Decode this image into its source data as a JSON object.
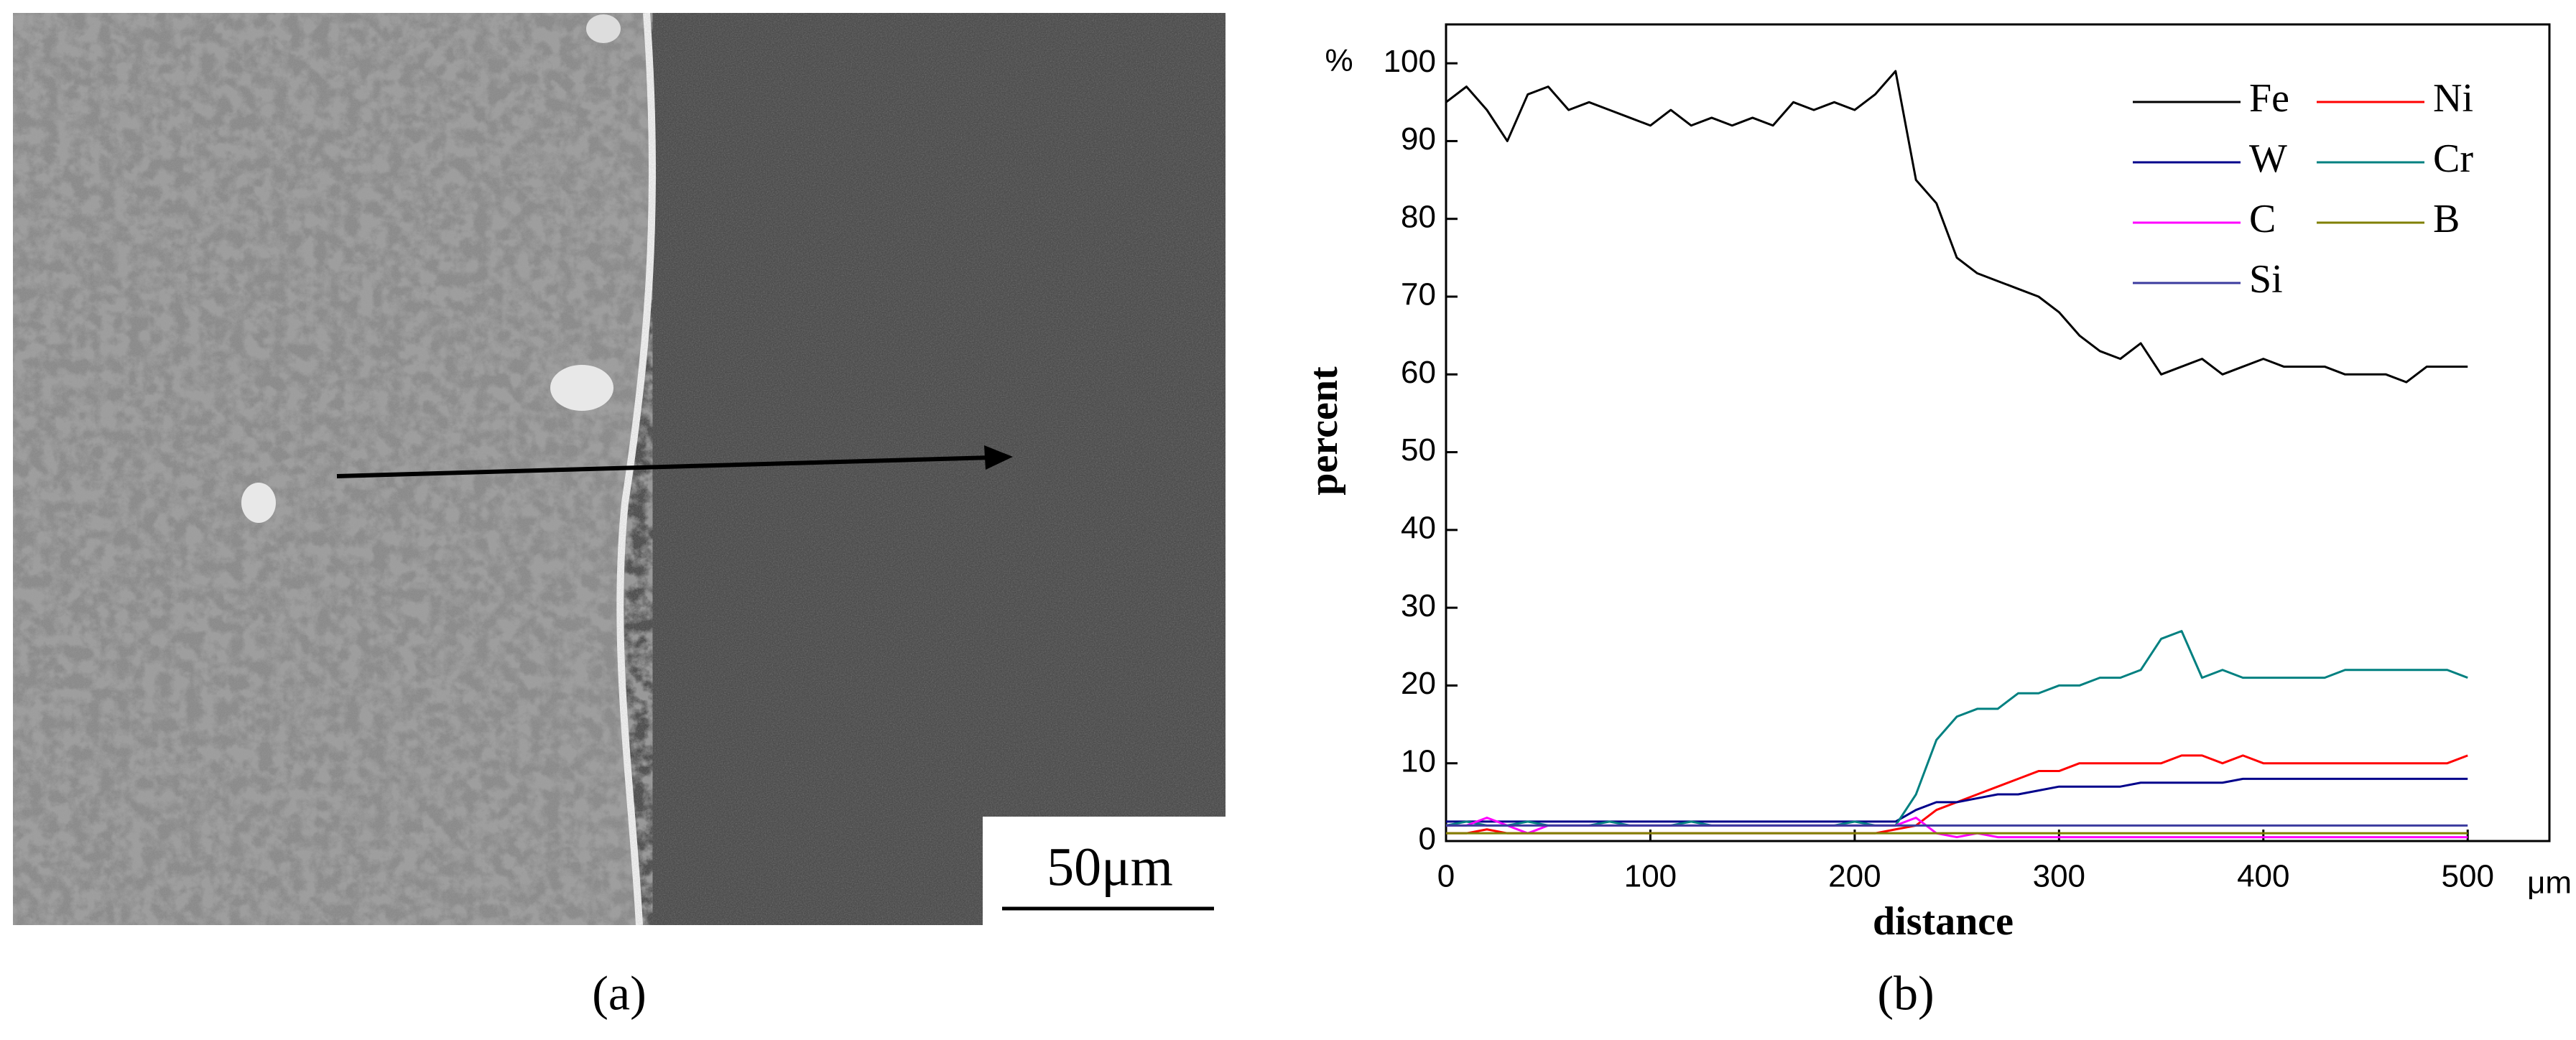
{
  "figure": {
    "panel_labels": [
      "(a)",
      "(b)"
    ],
    "scale_bar": "50μm"
  },
  "chart_data": {
    "type": "line",
    "y_label": "percent",
    "x_label": "distance",
    "y_unit": "%",
    "x_unit": "μm",
    "x": [
      0,
      10,
      20,
      30,
      40,
      50,
      60,
      70,
      80,
      90,
      100,
      110,
      120,
      130,
      140,
      150,
      160,
      170,
      180,
      190,
      200,
      210,
      220,
      230,
      240,
      250,
      260,
      270,
      280,
      290,
      300,
      310,
      320,
      330,
      340,
      350,
      360,
      370,
      380,
      390,
      400,
      410,
      420,
      430,
      440,
      450,
      460,
      470,
      480,
      490,
      500
    ],
    "series": [
      {
        "name": "Fe",
        "color": "#000000",
        "values": [
          95,
          97,
          94,
          90,
          96,
          97,
          94,
          95,
          94,
          93,
          92,
          94,
          92,
          93,
          92,
          93,
          92,
          95,
          94,
          95,
          94,
          96,
          99,
          85,
          82,
          75,
          73,
          72,
          71,
          70,
          68,
          65,
          63,
          62,
          64,
          60,
          61,
          62,
          60,
          61,
          62,
          61,
          61,
          61,
          60,
          60,
          60,
          59,
          61,
          61,
          61
        ]
      },
      {
        "name": "Ni",
        "color": "#ff0000",
        "values": [
          1,
          1,
          1.5,
          1,
          1,
          1,
          1,
          1,
          1,
          1,
          1,
          1,
          1,
          1,
          1,
          1,
          1,
          1,
          1,
          1,
          1,
          1,
          1.5,
          2,
          4,
          5,
          6,
          7,
          8,
          9,
          9,
          10,
          10,
          10,
          10,
          10,
          11,
          11,
          10,
          11,
          10,
          10,
          10,
          10,
          10,
          10,
          10,
          10,
          10,
          10,
          11
        ]
      },
      {
        "name": "W",
        "color": "#00008b",
        "values": [
          2.5,
          2.5,
          2.5,
          2.5,
          2.5,
          2.5,
          2.5,
          2.5,
          2.5,
          2.5,
          2.5,
          2.5,
          2.5,
          2.5,
          2.5,
          2.5,
          2.5,
          2.5,
          2.5,
          2.5,
          2.5,
          2.5,
          2.5,
          4,
          5,
          5,
          5.5,
          6,
          6,
          6.5,
          7,
          7,
          7,
          7,
          7.5,
          7.5,
          7.5,
          7.5,
          7.5,
          8,
          8,
          8,
          8,
          8,
          8,
          8,
          8,
          8,
          8,
          8,
          8
        ]
      },
      {
        "name": "Cr",
        "color": "#008080",
        "values": [
          2,
          2.5,
          2,
          2,
          2.5,
          2,
          2,
          2,
          2.5,
          2,
          2,
          2,
          2.5,
          2,
          2,
          2,
          2,
          2,
          2,
          2,
          2.5,
          2,
          2,
          6,
          13,
          16,
          17,
          17,
          19,
          19,
          20,
          20,
          21,
          21,
          22,
          26,
          27,
          21,
          22,
          21,
          21,
          21,
          21,
          21,
          22,
          22,
          22,
          22,
          22,
          22,
          21
        ]
      },
      {
        "name": "C",
        "color": "#ff00ff",
        "values": [
          2,
          2,
          3,
          2,
          1,
          2,
          2,
          2,
          2,
          2,
          2,
          2,
          2,
          2,
          2,
          2,
          2,
          2,
          2,
          2,
          2,
          2,
          2,
          3,
          1,
          0.5,
          1,
          0.5,
          0.5,
          0.5,
          0.5,
          0.5,
          0.5,
          0.5,
          0.5,
          0.5,
          0.5,
          0.5,
          0.5,
          0.5,
          0.5,
          0.5,
          0.5,
          0.5,
          0.5,
          0.5,
          0.5,
          0.5,
          0.5,
          0.5,
          0.5
        ]
      },
      {
        "name": "B",
        "color": "#808000",
        "values": [
          1,
          1,
          1,
          1,
          1,
          1,
          1,
          1,
          1,
          1,
          1,
          1,
          1,
          1,
          1,
          1,
          1,
          1,
          1,
          1,
          1,
          1,
          1,
          1,
          1,
          1,
          1,
          1,
          1,
          1,
          1,
          1,
          1,
          1,
          1,
          1,
          1,
          1,
          1,
          1,
          1,
          1,
          1,
          1,
          1,
          1,
          1,
          1,
          1,
          1,
          1
        ]
      },
      {
        "name": "Si",
        "color": "#3b3b9e",
        "values": [
          2,
          2,
          2,
          2,
          2,
          2,
          2,
          2,
          2,
          2,
          2,
          2,
          2,
          2,
          2,
          2,
          2,
          2,
          2,
          2,
          2,
          2,
          2,
          2,
          2,
          2,
          2,
          2,
          2,
          2,
          2,
          2,
          2,
          2,
          2,
          2,
          2,
          2,
          2,
          2,
          2,
          2,
          2,
          2,
          2,
          2,
          2,
          2,
          2,
          2,
          2
        ]
      }
    ],
    "xlim": [
      0,
      540
    ],
    "ylim": [
      0,
      105
    ],
    "xticks": [
      0,
      100,
      200,
      300,
      400,
      500
    ],
    "yticks": [
      0,
      10,
      20,
      30,
      40,
      50,
      60,
      70,
      80,
      90,
      100
    ],
    "legend": "upper right"
  }
}
